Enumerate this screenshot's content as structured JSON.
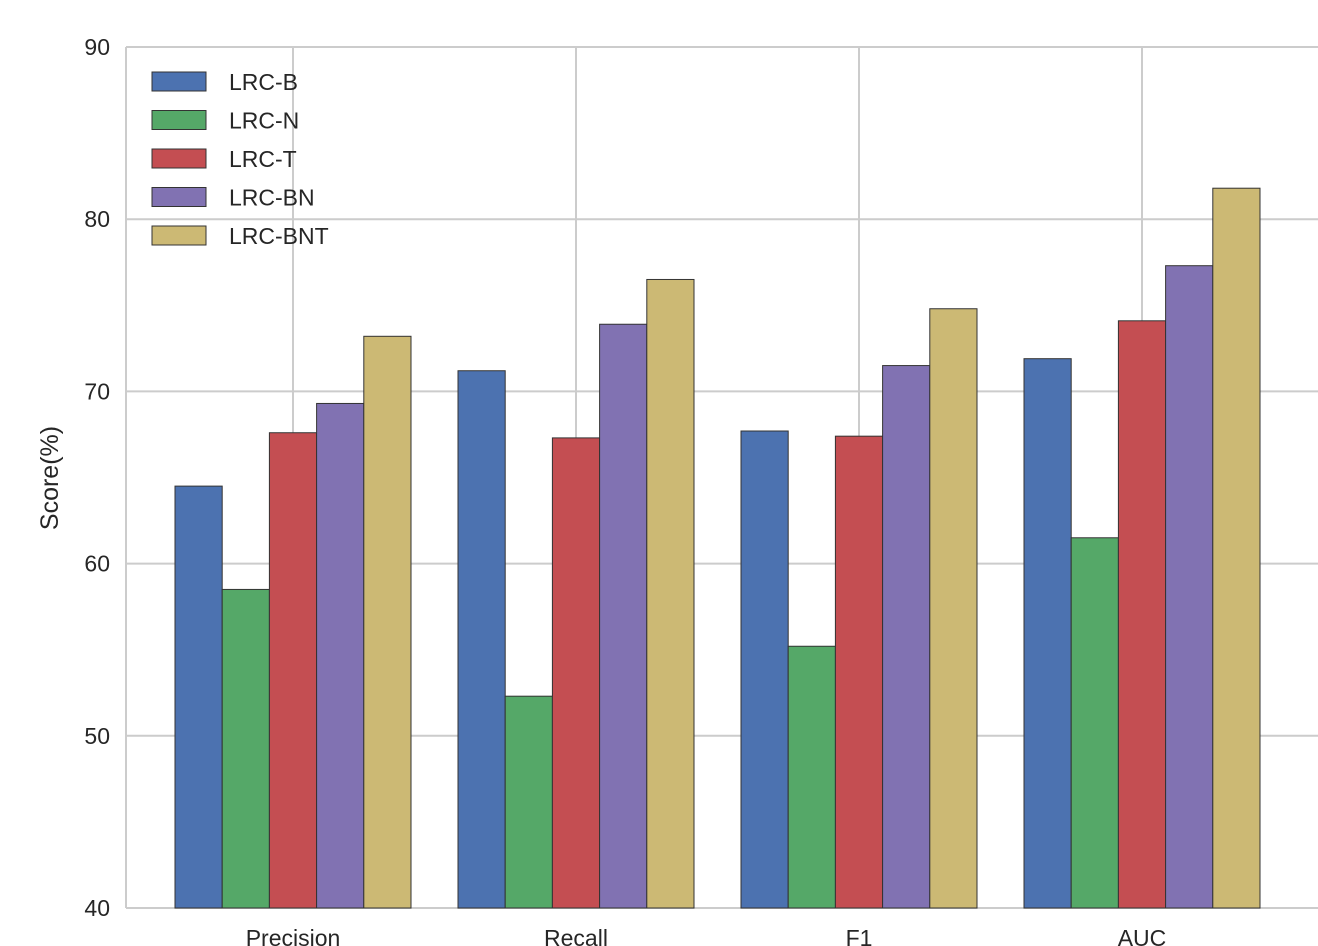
{
  "chart_data": {
    "type": "bar",
    "title": "",
    "xlabel": "",
    "ylabel": "Score(%)",
    "ylim": [
      40,
      90
    ],
    "yticks": [
      40,
      50,
      60,
      70,
      80,
      90
    ],
    "grid": true,
    "legend_position": "top-left",
    "categories": [
      "Precision",
      "Recall",
      "F1",
      "AUC"
    ],
    "series": [
      {
        "name": "LRC-B",
        "color": "#4c72b0",
        "values": [
          64.5,
          71.2,
          67.7,
          71.9
        ]
      },
      {
        "name": "LRC-N",
        "color": "#55a868",
        "values": [
          58.5,
          52.3,
          55.2,
          61.5
        ]
      },
      {
        "name": "LRC-T",
        "color": "#c44e52",
        "values": [
          67.6,
          67.3,
          67.4,
          74.1
        ]
      },
      {
        "name": "LRC-BN",
        "color": "#8172b2",
        "values": [
          69.3,
          73.9,
          71.5,
          77.3
        ]
      },
      {
        "name": "LRC-BNT",
        "color": "#ccb974",
        "values": [
          73.2,
          76.5,
          74.8,
          81.8
        ]
      }
    ]
  }
}
